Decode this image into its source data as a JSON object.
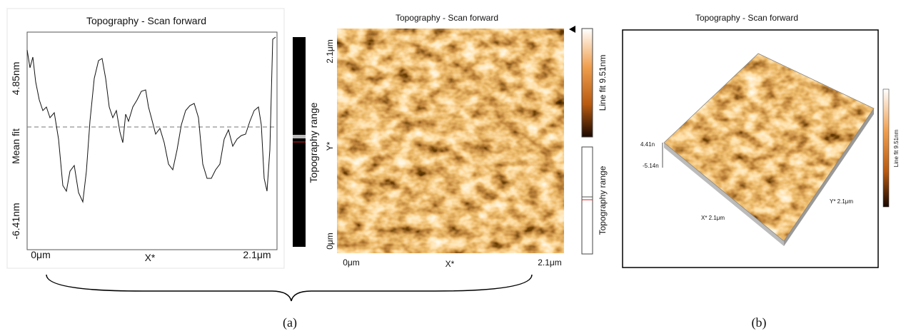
{
  "panel_a": {
    "profile": {
      "title": "Topography - Scan forward",
      "y_top": "4.85nm",
      "y_mid": "Mean fit",
      "y_bottom": "-6.41nm",
      "x_start": "0μm",
      "x_mid": "X*",
      "x_end": "2.1μm",
      "range_label": "Topography range"
    },
    "image": {
      "title": "Topography - Scan forward",
      "y_top": "2.1μm",
      "y_mid": "Y*",
      "y_bottom": "0μm",
      "x_start": "0μm",
      "x_mid": "X*",
      "x_end": "2.1μm",
      "colorbar_label": "Line fit 9.51nm",
      "range_label": "Topography range"
    },
    "caption": "(a)"
  },
  "panel_b": {
    "title": "Topography - Scan forward",
    "z_top": "4.41n",
    "z_bottom": "-5.14n",
    "x_label": "X* 2.1μm",
    "y_label": "Y* 2.1μm",
    "colorbar_label": "Line fit 9.51nm",
    "caption": "(b)"
  }
}
